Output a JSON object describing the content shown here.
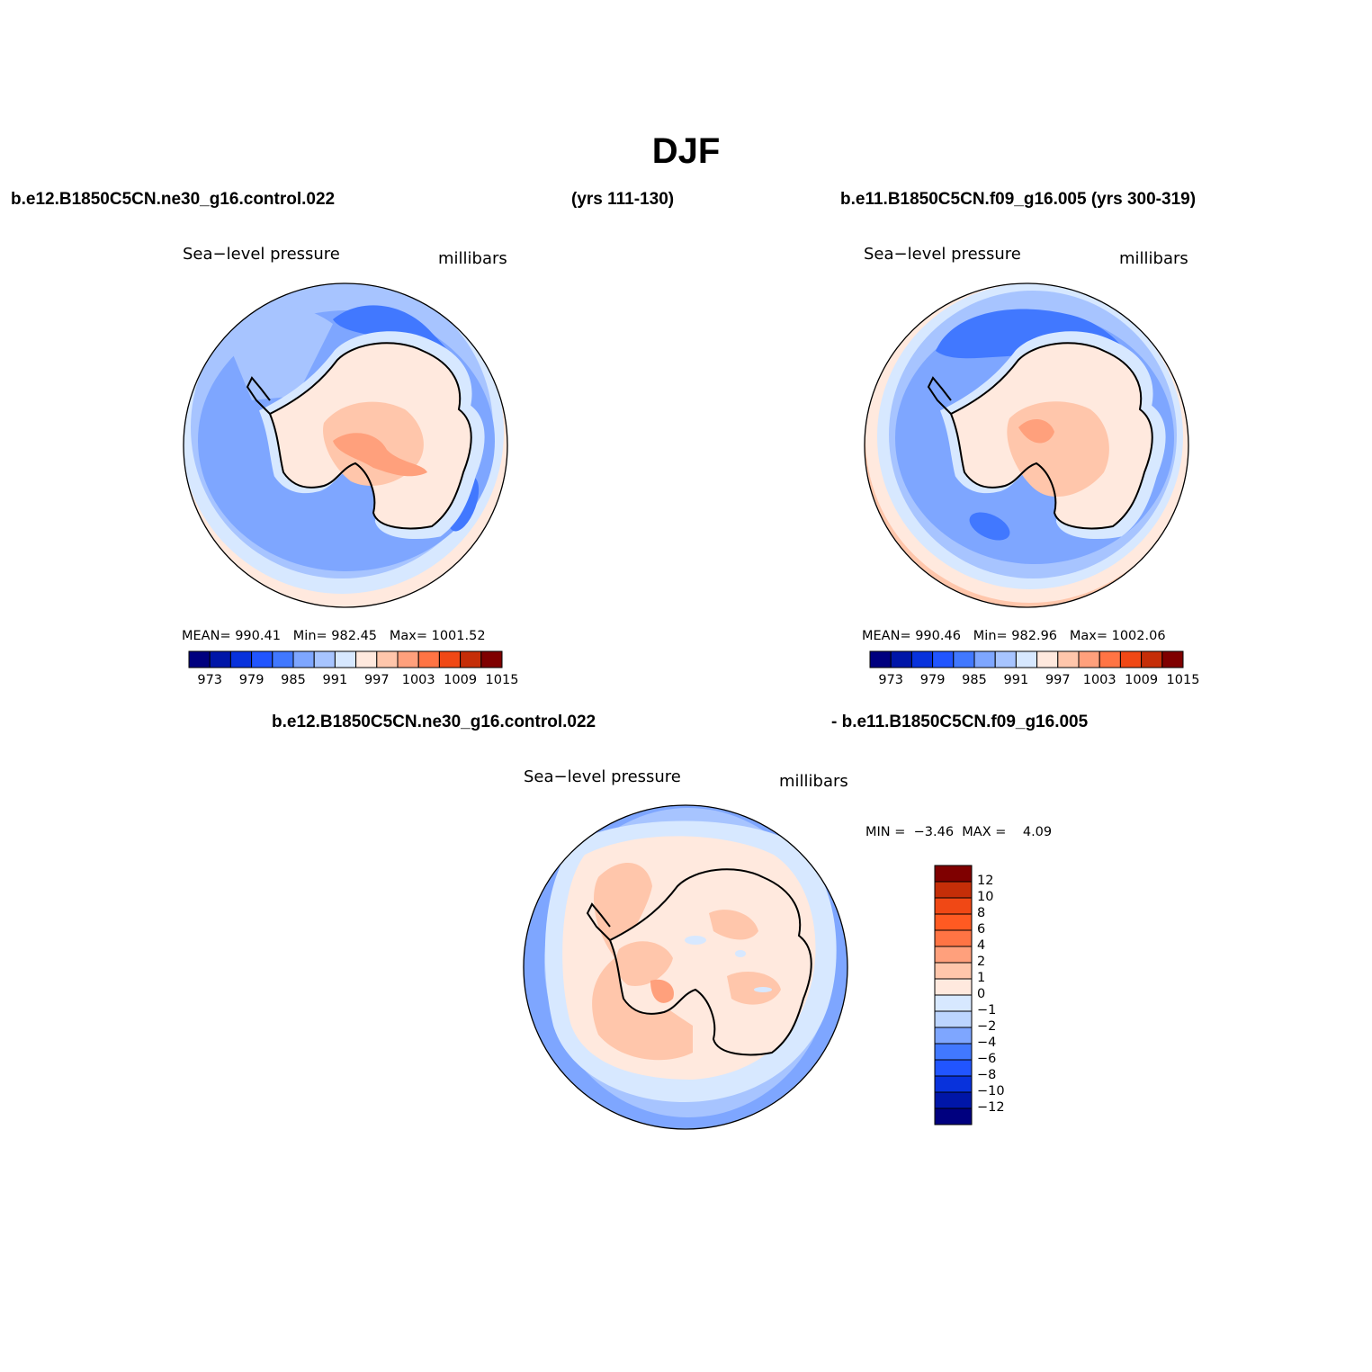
{
  "title": "DJF",
  "panel1": {
    "case_name": "b.e12.B1850C5CN.ne30_g16.control.022",
    "years": "(yrs 111-130)",
    "variable": "Sea−level pressure",
    "units": "millibars",
    "stats": {
      "mean_label": "MEAN=",
      "mean": "990.41",
      "min_label": "Min=",
      "min": "982.45",
      "max_label": "Max=",
      "max": "1001.52"
    }
  },
  "panel2": {
    "case_name": "b.e11.B1850C5CN.f09_g16.005 (yrs 300-319)",
    "variable": "Sea−level pressure",
    "units": "millibars",
    "stats": {
      "mean_label": "MEAN=",
      "mean": "990.46",
      "min_label": "Min=",
      "min": "982.96",
      "max_label": "Max=",
      "max": "1002.06"
    }
  },
  "panel3": {
    "case_name_a": "b.e12.B1850C5CN.ne30_g16.control.022",
    "case_name_b": "- b.e11.B1850C5CN.f09_g16.005",
    "variable": "Sea−level pressure",
    "units": "millibars",
    "minmax": {
      "min_label": "MIN =",
      "min": "−3.46",
      "max_label": "MAX =",
      "max": "4.09"
    }
  },
  "horizontal_colorbar": {
    "tick_labels": [
      "973",
      "979",
      "985",
      "991",
      "997",
      "1003",
      "1009",
      "1015"
    ],
    "colors": [
      "#00007f",
      "#0016a8",
      "#0832dc",
      "#2155ff",
      "#4178ff",
      "#7ea6ff",
      "#a7c4ff",
      "#d7e8ff",
      "#ffe9de",
      "#ffc6ab",
      "#ffa07c",
      "#ff7444",
      "#f04815",
      "#c52e08",
      "#7f0000"
    ]
  },
  "vertical_colorbar": {
    "tick_labels": [
      "12",
      "10",
      "8",
      "6",
      "4",
      "2",
      "1",
      "0",
      "−1",
      "−2",
      "−4",
      "−6",
      "−8",
      "−10",
      "−12"
    ],
    "colors_top_to_bottom": [
      "#7f0000",
      "#c52e08",
      "#f04815",
      "#ff5a22",
      "#ff7444",
      "#ffa07c",
      "#ffc6ab",
      "#ffe9de",
      "#d7e8ff",
      "#bcd5ff",
      "#7ea6ff",
      "#4178ff",
      "#2155ff",
      "#0832dc",
      "#0016a8",
      "#00007f"
    ]
  },
  "map_colors": {
    "deep_low": "#4178ff",
    "low": "#7ea6ff",
    "mid_low": "#a7c4ff",
    "light_low": "#d7e8ff",
    "light_high": "#ffe9de",
    "high": "#ffc6ab",
    "higher": "#ffa07c"
  }
}
